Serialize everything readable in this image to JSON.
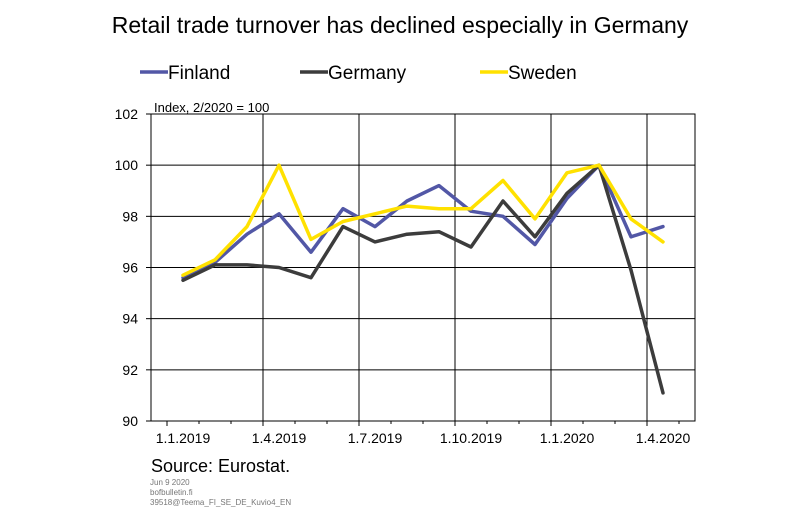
{
  "chart_data": {
    "type": "line",
    "title": "Retail trade turnover has declined especially in Germany",
    "ylabel": "Index, 2/2020 = 100",
    "xlabel": "",
    "ylim": [
      90,
      102
    ],
    "yticks": [
      90,
      92,
      94,
      96,
      98,
      100,
      102
    ],
    "x_tick_labels": [
      "1.1.2019",
      "1.4.2019",
      "1.7.2019",
      "1.10.2019",
      "1.1.2020",
      "1.4.2020"
    ],
    "x": [
      "1/2019",
      "2/2019",
      "3/2019",
      "4/2019",
      "5/2019",
      "6/2019",
      "7/2019",
      "8/2019",
      "9/2019",
      "10/2019",
      "11/2019",
      "12/2019",
      "1/2020",
      "2/2020",
      "3/2020",
      "4/2020"
    ],
    "grid": true,
    "legend_position": "top",
    "series": [
      {
        "name": "Finland",
        "color": "#5257a6",
        "values": [
          95.6,
          96.2,
          97.3,
          98.1,
          96.6,
          98.3,
          97.6,
          98.6,
          99.2,
          98.2,
          98.0,
          96.9,
          98.7,
          100.0,
          97.2,
          97.6
        ]
      },
      {
        "name": "Germany",
        "color": "#3c3c3c",
        "values": [
          95.5,
          96.1,
          96.1,
          96.0,
          95.6,
          97.6,
          97.0,
          97.3,
          97.4,
          96.8,
          98.6,
          97.2,
          98.9,
          100.0,
          95.9,
          91.1
        ]
      },
      {
        "name": "Sweden",
        "color": "#ffe100",
        "values": [
          95.7,
          96.3,
          97.6,
          100.0,
          97.1,
          97.8,
          98.1,
          98.4,
          98.3,
          98.3,
          99.4,
          97.9,
          99.7,
          100.0,
          97.9,
          97.0
        ]
      }
    ]
  },
  "source": "Source: Eurostat.",
  "meta": [
    "Jun 9 2020",
    "bofbulletin.fi",
    "39518@Teema_FI_SE_DE_Kuvio4_EN"
  ]
}
